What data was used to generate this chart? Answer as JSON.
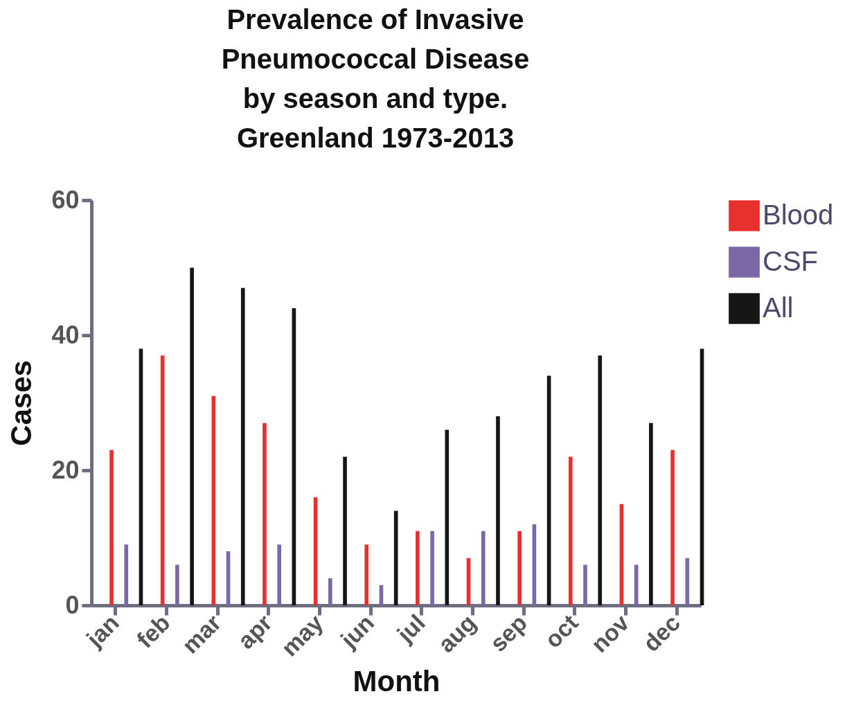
{
  "chart_data": {
    "type": "bar",
    "title": "Prevalence of Invasive\nPneumococcal Disease\nby season and type.\nGreenland 1973-2013",
    "xlabel": "Month",
    "ylabel": "Cases",
    "categories": [
      "jan",
      "feb",
      "mar",
      "apr",
      "may",
      "jun",
      "jul",
      "aug",
      "sep",
      "oct",
      "nov",
      "dec"
    ],
    "series": [
      {
        "name": "Blood",
        "color": "#e8302e",
        "values": [
          23,
          37,
          31,
          27,
          16,
          9,
          11,
          7,
          11,
          22,
          15,
          23
        ]
      },
      {
        "name": "CSF",
        "color": "#7b68a6",
        "values": [
          9,
          6,
          8,
          9,
          4,
          3,
          11,
          11,
          12,
          6,
          6,
          7
        ]
      },
      {
        "name": "All",
        "color": "#161616",
        "values": [
          38,
          50,
          47,
          44,
          22,
          14,
          26,
          28,
          34,
          37,
          27,
          38
        ]
      }
    ],
    "ylim": [
      0,
      60
    ],
    "yticks": [
      0,
      20,
      40,
      60
    ],
    "grid": false,
    "legend": "top right"
  }
}
